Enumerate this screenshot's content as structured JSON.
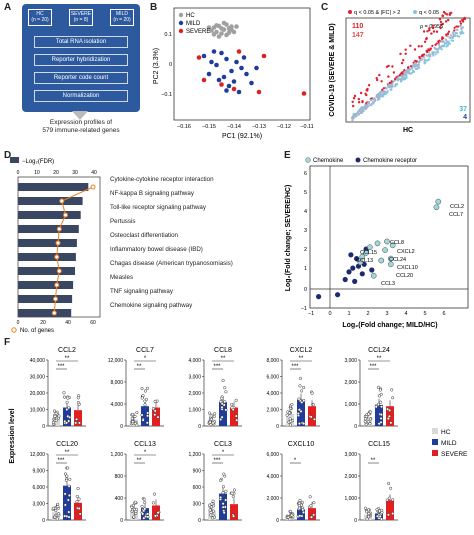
{
  "panel_labels": {
    "a": "A",
    "b": "B",
    "c": "C",
    "d": "D",
    "e": "E",
    "f": "F"
  },
  "colors": {
    "hc": "#a0a0a0",
    "mild": "#1f3c9c",
    "severe": "#e02020",
    "flow_bg": "#2d5a9e",
    "bar": "#3a4763",
    "line": "#f08020",
    "chemokine": "#9fd8dc",
    "receptor": "#1e2a6e"
  },
  "panel_a": {
    "groups": [
      {
        "name": "HC",
        "n": "(n = 20)"
      },
      {
        "name": "SEVERE",
        "n": "(n = 8)"
      },
      {
        "name": "MILD",
        "n": "(n = 20)"
      }
    ],
    "steps": [
      "Total RNA isolation",
      "Reporter hybridization",
      "Reporter code count",
      "Normalization"
    ],
    "result_line1": "Expression profiles of",
    "result_line2": "579 immune-related genes"
  },
  "panel_b": {
    "legend": [
      "HC",
      "MILD",
      "SEVERE"
    ],
    "xlabel": "PC1 (92.1%)",
    "ylabel": "PC2 (3.3%)",
    "xticks": [
      "−0.16",
      "−0.15",
      "−0.14",
      "−0.13",
      "−0.12",
      "−0.11"
    ],
    "yticks": [
      "0.1",
      "0",
      "−0.1"
    ]
  },
  "panel_c": {
    "legend1": "q < 0.05 & |FC| > 2",
    "legend2": "q < 0.05",
    "rho": "ρ = 0.956",
    "count_up_mild": "110",
    "count_up_severe": "147",
    "count_down_mild": "37",
    "count_down_severe": "4",
    "xlabel": "HC",
    "ylabel": "COVID-19 (SEVERE & MILD)"
  },
  "panel_d": {
    "legend_bar": "−Log₂(FDR)",
    "legend_line": "No. of genes",
    "top_ticks": [
      "0",
      "10",
      "20",
      "30",
      "40"
    ],
    "bottom_ticks": [
      "0",
      "20",
      "40",
      "60"
    ],
    "pathways": [
      "Cytokine-cytokine receptor interaction",
      "NF-kappa B signaling pathway",
      "Toll-like receptor signaling pathway",
      "Pertussis",
      "Osteoclast differentiation",
      "Inflammatory bowel disease (IBD)",
      "Chagas disease (American trypanosomiasis)",
      "Measles",
      "TNF signaling pathway",
      "Chemokine signaling pathway"
    ]
  },
  "panel_e": {
    "legend1": "Chemokine",
    "legend2": "Chemokine receptor",
    "xlabel": "Log₂(Fold change; MILD/HC)",
    "ylabel": "Log₂(Fold change; SEVERE/HC)",
    "xticks": [
      "−1",
      "0",
      "1",
      "2",
      "3",
      "4",
      "5",
      "6"
    ],
    "yticks": [
      "6",
      "5",
      "4",
      "3",
      "2",
      "1",
      "0",
      "−1"
    ],
    "labels": [
      "CCL2",
      "CCL7",
      "CCL8",
      "CXCL2",
      "CCL24",
      "CCL15",
      "CCL13",
      "CXCL10",
      "CCL20",
      "CCL3"
    ]
  },
  "panel_f": {
    "ylabel": "Expression level",
    "legend": [
      "HC",
      "MILD",
      "SEVERE"
    ],
    "genes": [
      {
        "name": "CCL2",
        "yticks": [
          "40,000",
          "30,000",
          "20,000",
          "10,000",
          "0"
        ],
        "sig1": "***",
        "sig2": "**",
        "bars": [
          0.12,
          0.28,
          0.24
        ]
      },
      {
        "name": "CCL7",
        "yticks": [
          "12,000",
          "8,000",
          "4,000",
          "0"
        ],
        "sig1": "**",
        "sig2": "*",
        "bars": [
          0.1,
          0.3,
          0.28
        ]
      },
      {
        "name": "CCL8",
        "yticks": [
          "4,000",
          "3,000",
          "2,000",
          "1,000",
          "0"
        ],
        "sig1": "***",
        "sig2": "**",
        "bars": [
          0.1,
          0.36,
          0.28
        ]
      },
      {
        "name": "CXCL2",
        "yticks": [
          "8,000",
          "6,000",
          "4,000",
          "2,000",
          "0"
        ],
        "sig1": "***",
        "sig2": "**",
        "bars": [
          0.18,
          0.4,
          0.3
        ]
      },
      {
        "name": "CCL24",
        "yticks": [
          "3,000",
          "2,000",
          "1,000",
          "0"
        ],
        "sig1": "***",
        "sig2": "**",
        "bars": [
          0.12,
          0.32,
          0.3
        ]
      },
      {
        "name": "CCL20",
        "yticks": [
          "12,000",
          "9,000",
          "6,000",
          "3,000",
          "0"
        ],
        "sig1": "***",
        "sig2": "**",
        "bars": [
          0.12,
          0.52,
          0.26
        ]
      },
      {
        "name": "CCL13",
        "yticks": [
          "1,200",
          "800",
          "400",
          "0"
        ],
        "sig1": "**",
        "sig2": "*",
        "bars": [
          0.16,
          0.18,
          0.22
        ]
      },
      {
        "name": "CCL3",
        "yticks": [
          "1,200",
          "900",
          "600",
          "300",
          "0"
        ],
        "sig1": "***",
        "sig2": "*",
        "bars": [
          0.14,
          0.4,
          0.24
        ]
      },
      {
        "name": "CXCL10",
        "yticks": [
          "6,000",
          "4,000",
          "2,000",
          "0"
        ],
        "sig1": "*",
        "sig2": "",
        "bars": [
          0.05,
          0.16,
          0.18
        ]
      },
      {
        "name": "CCL15",
        "yticks": [
          "3,000",
          "2,000",
          "1,000",
          "0"
        ],
        "sig1": "**",
        "sig2": "",
        "bars": [
          0.08,
          0.1,
          0.3
        ]
      }
    ]
  }
}
